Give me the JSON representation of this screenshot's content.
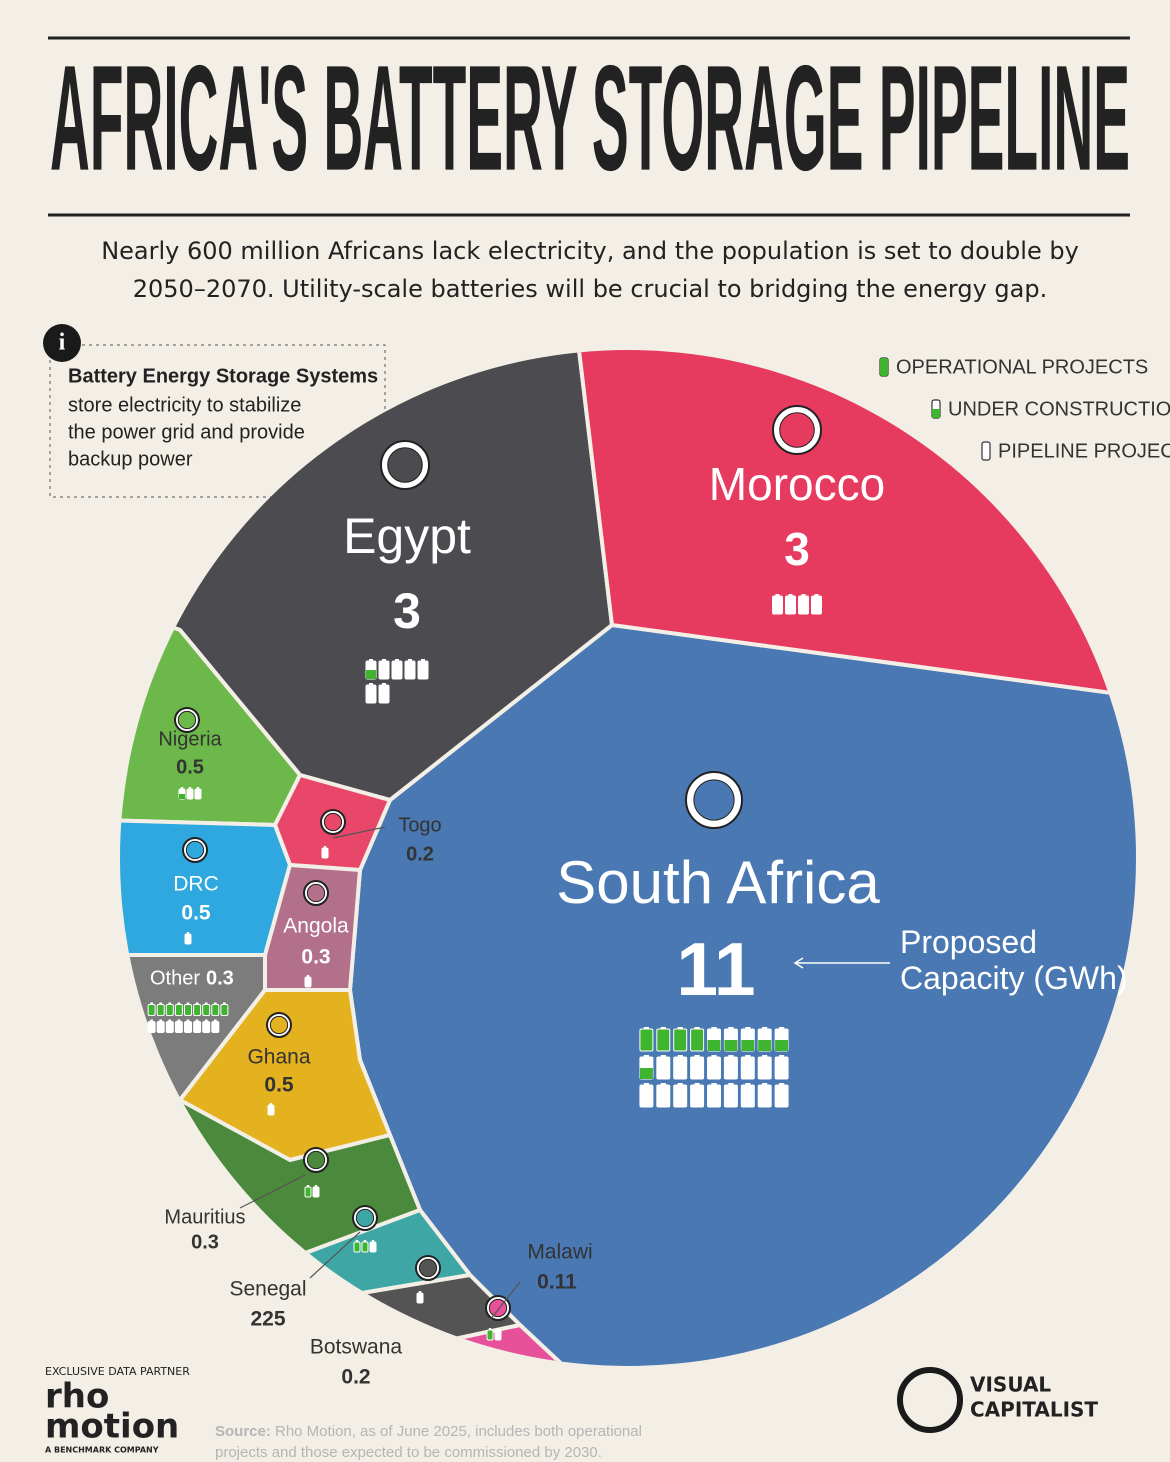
{
  "chart_data": {
    "type": "voronoi",
    "title": "AFRICA'S BATTERY STORAGE PIPELINE",
    "subtitle_lines": [
      "Nearly 600 million Africans lack electricity, and the population is set to double by",
      "2050–2070. Utility-scale batteries will be crucial to bridging the energy gap."
    ],
    "categories": [
      "South Africa",
      "Egypt",
      "Morocco",
      "Nigeria",
      "Togo",
      "DRC",
      "Angola",
      "Other",
      "Ghana",
      "Mauritius",
      "Senegal",
      "Botswana",
      "Malawi"
    ],
    "values": [
      11,
      3,
      3,
      0.5,
      0.2,
      0.5,
      0.3,
      0.3,
      0.5,
      0.3,
      225,
      0.2,
      0.11
    ],
    "colors": [
      "#4a78b3",
      "#4b4b50",
      "#e63a5f",
      "#6cb84b",
      "#e8476a",
      "#2ea8de",
      "#b3708a",
      "#7c7c7c",
      "#e4b21f",
      "#4b8a3c",
      "#3ea7a6",
      "#545454",
      "#e65199"
    ],
    "series": [
      {
        "name": "OPERATIONAL PROJECTS",
        "color": "#3fb52f",
        "values": [
          4,
          0,
          0,
          0,
          0,
          0,
          0,
          9,
          0,
          1,
          2,
          0,
          1
        ]
      },
      {
        "name": "UNDER CONSTRUCTION",
        "color": "#3fb52f",
        "values": [
          6,
          1,
          0,
          1,
          0,
          0,
          0,
          0,
          0,
          0,
          0,
          0,
          0
        ]
      },
      {
        "name": "PIPELINE PROJECTS",
        "color": "#ffffff",
        "values": [
          17,
          6,
          4,
          2,
          1,
          1,
          1,
          8,
          1,
          1,
          1,
          1,
          1
        ]
      }
    ],
    "annotation": "Proposed Capacity (GWh)"
  },
  "info": {
    "heading": "Battery Energy Storage Systems",
    "body_lines": [
      "store electricity to stabilize",
      "the power grid and provide",
      "backup power"
    ]
  },
  "footer": {
    "partner_label": "EXCLUSIVE DATA PARTNER",
    "partner_lines": [
      "rho",
      "motion"
    ],
    "partner_sub": "A BENCHMARK COMPANY",
    "source_label": "Source:",
    "source_lines": [
      "Rho Motion, as of June 2025, includes both operational",
      "projects and those expected to be commissioned by 2030."
    ],
    "brand_lines": [
      "VISUAL",
      "CAPITALIST"
    ]
  }
}
